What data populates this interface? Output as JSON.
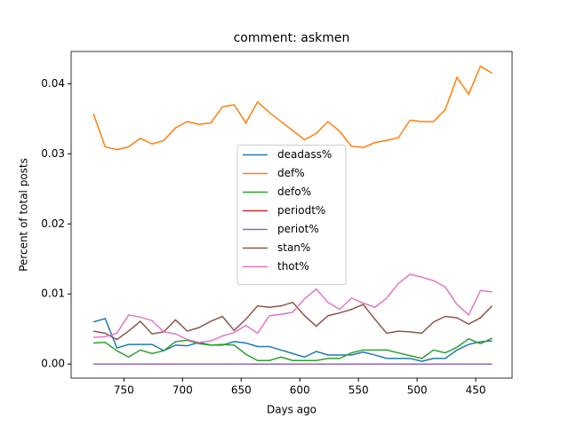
{
  "chart_data": {
    "type": "line",
    "title": "comment: askmen",
    "x_label": "Days ago",
    "y_label": "Percent of total posts",
    "x": [
      776,
      766,
      756,
      746,
      736,
      726,
      716,
      706,
      696,
      686,
      676,
      666,
      656,
      646,
      636,
      626,
      616,
      606,
      596,
      586,
      576,
      566,
      556,
      546,
      536,
      526,
      516,
      506,
      496,
      486,
      476,
      466,
      456,
      446,
      436
    ],
    "xlim": [
      795,
      419
    ],
    "xticks": [
      750,
      700,
      650,
      600,
      550,
      500,
      450
    ],
    "ylim": [
      -0.002,
      0.0446
    ],
    "yticks": [
      {
        "value": 0,
        "label": "0.00"
      },
      {
        "value": 0.01,
        "label": "0.01"
      },
      {
        "value": 0.02,
        "label": "0.02"
      },
      {
        "value": 0.03,
        "label": "0.03"
      },
      {
        "value": 0.04,
        "label": "0.04"
      }
    ],
    "legend": "center",
    "series": [
      {
        "name": "deadass%",
        "color": "#1f77b4",
        "values": [
          0.006,
          0.0065,
          0.0023,
          0.0028,
          0.0028,
          0.0028,
          0.0019,
          0.0027,
          0.0026,
          0.0031,
          0.0027,
          0.0027,
          0.0032,
          0.003,
          0.0025,
          0.0025,
          0.002,
          0.0015,
          0.001,
          0.0018,
          0.0013,
          0.0013,
          0.0013,
          0.0017,
          0.0013,
          0.0008,
          0.0008,
          0.0008,
          0.0004,
          0.0008,
          0.0008,
          0.002,
          0.0028,
          0.0032,
          0.0033
        ]
      },
      {
        "name": "def%",
        "color": "#ff7f0e",
        "values": [
          0.0357,
          0.031,
          0.0306,
          0.031,
          0.0322,
          0.0314,
          0.0319,
          0.0337,
          0.0346,
          0.0342,
          0.0344,
          0.0367,
          0.037,
          0.0344,
          0.0374,
          0.0359,
          0.0346,
          0.0333,
          0.032,
          0.0329,
          0.0346,
          0.0332,
          0.0311,
          0.0309,
          0.0316,
          0.0319,
          0.0323,
          0.0348,
          0.0346,
          0.0346,
          0.0363,
          0.0409,
          0.0385,
          0.0425,
          0.0415
        ]
      },
      {
        "name": "defo%",
        "color": "#2ca02c",
        "values": [
          0.003,
          0.0031,
          0.0019,
          0.001,
          0.002,
          0.0015,
          0.0019,
          0.0032,
          0.0034,
          0.0029,
          0.0027,
          0.0028,
          0.0027,
          0.0014,
          0.0005,
          0.0005,
          0.001,
          0.0005,
          0.0005,
          0.0005,
          0.0008,
          0.0008,
          0.0016,
          0.002,
          0.002,
          0.002,
          0.0016,
          0.0012,
          0.0008,
          0.002,
          0.0016,
          0.0024,
          0.0036,
          0.0029,
          0.0037
        ]
      },
      {
        "name": "periodt%",
        "color": "#d62728",
        "values": [
          0,
          0,
          0,
          0,
          0,
          0,
          0,
          0,
          0,
          0,
          0,
          0,
          0,
          0,
          0,
          0,
          0,
          0,
          0,
          0,
          0,
          0,
          0,
          0,
          0,
          0,
          0,
          0,
          0,
          0,
          0,
          0,
          0,
          0,
          0
        ]
      },
      {
        "name": "periot%",
        "color": "#9467bd",
        "values": [
          0,
          0,
          0,
          0,
          0,
          0,
          0,
          0,
          0,
          0,
          0,
          0,
          0,
          0,
          0,
          0,
          0,
          0,
          0,
          0,
          0,
          0,
          0,
          0,
          0,
          0,
          0,
          0,
          0,
          0,
          0,
          0,
          0,
          0,
          0
        ]
      },
      {
        "name": "stan%",
        "color": "#8c564b",
        "values": [
          0.0047,
          0.0044,
          0.0035,
          0.0047,
          0.0061,
          0.0043,
          0.0046,
          0.0063,
          0.0047,
          0.0052,
          0.0061,
          0.0068,
          0.0048,
          0.0064,
          0.0083,
          0.0081,
          0.0083,
          0.0088,
          0.0069,
          0.0054,
          0.0069,
          0.0073,
          0.0078,
          0.0085,
          0.0064,
          0.0044,
          0.0047,
          0.0046,
          0.0044,
          0.006,
          0.0068,
          0.0066,
          0.0057,
          0.0066,
          0.0083
        ]
      },
      {
        "name": "thot%",
        "color": "#e377c2",
        "values": [
          0.0038,
          0.0039,
          0.0044,
          0.007,
          0.0067,
          0.0062,
          0.0046,
          0.0043,
          0.0035,
          0.0031,
          0.0033,
          0.004,
          0.0045,
          0.0055,
          0.0044,
          0.0069,
          0.0071,
          0.0074,
          0.0093,
          0.0107,
          0.0088,
          0.0078,
          0.0094,
          0.0087,
          0.0081,
          0.0094,
          0.0115,
          0.0128,
          0.0124,
          0.0119,
          0.011,
          0.0085,
          0.007,
          0.0105,
          0.0103
        ]
      }
    ]
  }
}
